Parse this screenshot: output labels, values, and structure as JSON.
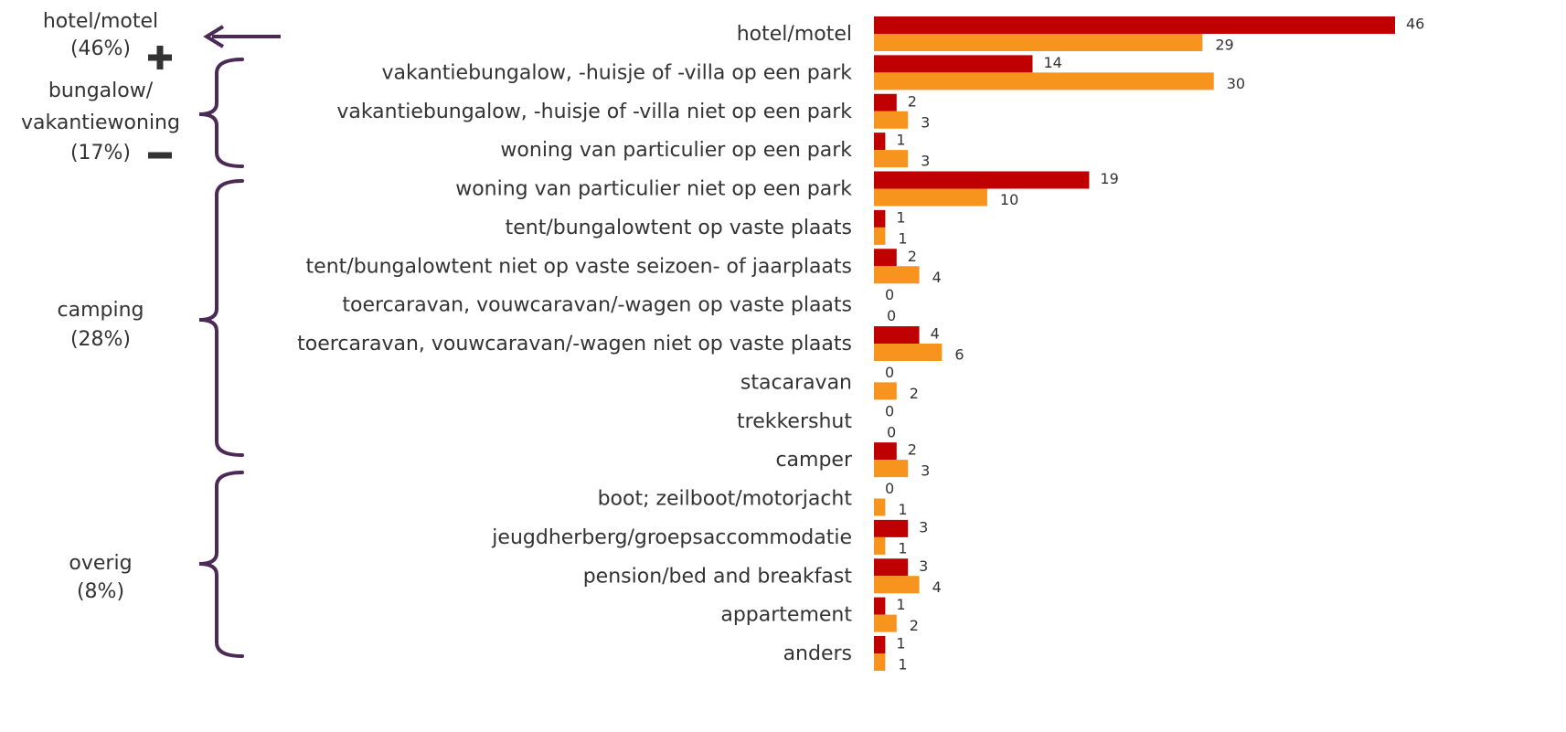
{
  "chart_data": {
    "type": "bar",
    "orientation": "horizontal",
    "categories": [
      "hotel/motel",
      "vakantiebungalow, -huisje of -villa op een park",
      "vakantiebungalow, -huisje of -villa niet op een park",
      "woning van particulier op een park",
      "woning van particulier niet op een park",
      "tent/bungalowtent op vaste plaats",
      "tent/bungalowtent niet op vaste seizoen- of jaarplaats",
      "toercaravan, vouwcaravan/-wagen op vaste plaats",
      "toercaravan, vouwcaravan/-wagen niet op vaste plaats",
      "stacaravan",
      "trekkershut",
      "camper",
      "boot; zeilboot/motorjacht",
      "jeugdherberg/groepsaccommodatie",
      "pension/bed and breakfast",
      "appartement",
      "anders"
    ],
    "series": [
      {
        "color": "#c00000",
        "values": [
          46,
          14,
          2,
          1,
          19,
          1,
          2,
          0,
          4,
          0,
          0,
          2,
          0,
          3,
          3,
          1,
          1
        ]
      },
      {
        "color": "#f7941d",
        "values": [
          29,
          30,
          3,
          3,
          10,
          1,
          4,
          0,
          6,
          2,
          0,
          3,
          1,
          1,
          4,
          2,
          1
        ]
      }
    ],
    "annotations": [
      [
        "hotel/motel",
        "(46%)"
      ],
      [
        "bungalow/",
        "vakantiewoning",
        "(17%)"
      ],
      [
        "camping",
        "(28%)"
      ],
      [
        "overig",
        "(8%)"
      ]
    ]
  }
}
